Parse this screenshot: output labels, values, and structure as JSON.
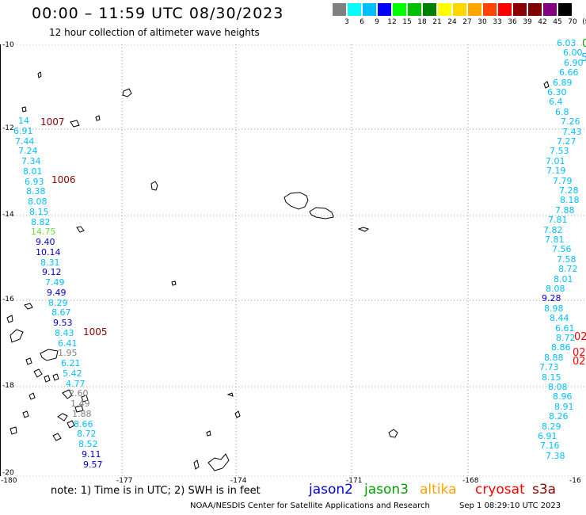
{
  "header": {
    "title": "00:00 – 11:59 UTC 08/30/2023",
    "subtitle": "12 hour collection of altimeter wave heights"
  },
  "color_scale": {
    "labels": [
      "3",
      "6",
      "9",
      "12",
      "15",
      "18",
      "21",
      "24",
      "27",
      "30",
      "33",
      "36",
      "39",
      "42",
      "45",
      "70",
      "(ft)"
    ],
    "colors": [
      "#808080",
      "#00ffff",
      "#00bfff",
      "#0000ff",
      "#00ff00",
      "#00c000",
      "#008000",
      "#ffff00",
      "#ffd700",
      "#ffa500",
      "#ff4500",
      "#ff0000",
      "#8b0000",
      "#800000",
      "#800080",
      "#000000"
    ]
  },
  "axes": {
    "lat_labels": [
      "-10",
      "-12",
      "-14",
      "-16",
      "-18",
      "-20"
    ],
    "lon_labels": [
      "-180",
      "-177",
      "-174",
      "-171",
      "-168",
      "-16"
    ]
  },
  "pressure_labels": [
    {
      "text": "1007"
    },
    {
      "text": "1006"
    },
    {
      "text": "1005"
    }
  ],
  "left_track": [
    {
      "v": "14",
      "c": "#00bfff"
    },
    {
      "v": "6.91",
      "c": "#00bfff"
    },
    {
      "v": "7.44",
      "c": "#00bfff"
    },
    {
      "v": "7.24",
      "c": "#00bfff"
    },
    {
      "v": "7.34",
      "c": "#00bfff"
    },
    {
      "v": "8.01",
      "c": "#00bfff"
    },
    {
      "v": "6.93",
      "c": "#00bfff"
    },
    {
      "v": "8.38",
      "c": "#00bfff"
    },
    {
      "v": "8.08",
      "c": "#00bfff"
    },
    {
      "v": "8.15",
      "c": "#00bfff"
    },
    {
      "v": "8.82",
      "c": "#00bfff"
    },
    {
      "v": "14.75",
      "c": "#66dd44"
    },
    {
      "v": "9.40",
      "c": "#0000cc"
    },
    {
      "v": "10.14",
      "c": "#0000cc"
    },
    {
      "v": "8.31",
      "c": "#00bfff"
    },
    {
      "v": "9.12",
      "c": "#0000cc"
    },
    {
      "v": "7.49",
      "c": "#00bfff"
    },
    {
      "v": "9.49",
      "c": "#0000cc"
    },
    {
      "v": "8.29",
      "c": "#00bfff"
    },
    {
      "v": "8.67",
      "c": "#00bfff"
    },
    {
      "v": "9.53",
      "c": "#0000cc"
    },
    {
      "v": "8.43",
      "c": "#00bfff"
    },
    {
      "v": "6.41",
      "c": "#00bfff"
    },
    {
      "v": "1.95",
      "c": "#808080"
    },
    {
      "v": "6.21",
      "c": "#00bfff"
    },
    {
      "v": "5.42",
      "c": "#00bfff"
    },
    {
      "v": "4.77",
      "c": "#00bfff"
    },
    {
      "v": "2.60",
      "c": "#808080"
    },
    {
      "v": "1.49",
      "c": "#808080"
    },
    {
      "v": "1.88",
      "c": "#808080"
    },
    {
      "v": "8.66",
      "c": "#00bfff"
    },
    {
      "v": "8.72",
      "c": "#00bfff"
    },
    {
      "v": "8.52",
      "c": "#00bfff"
    },
    {
      "v": "9.11",
      "c": "#0000cc"
    },
    {
      "v": "9.57",
      "c": "#0000cc"
    }
  ],
  "right_track": [
    {
      "v": "6.03",
      "c": "#00bfff"
    },
    {
      "v": "6.00",
      "c": "#00bfff"
    },
    {
      "v": "6.90",
      "c": "#00bfff"
    },
    {
      "v": "6.66",
      "c": "#00bfff"
    },
    {
      "v": "6.89",
      "c": "#00bfff"
    },
    {
      "v": "6.30",
      "c": "#00bfff"
    },
    {
      "v": "6.4",
      "c": "#00bfff"
    },
    {
      "v": "6.8",
      "c": "#00bfff"
    },
    {
      "v": "7.26",
      "c": "#00bfff"
    },
    {
      "v": "7.43",
      "c": "#00bfff"
    },
    {
      "v": "7.27",
      "c": "#00bfff"
    },
    {
      "v": "7.53",
      "c": "#00bfff"
    },
    {
      "v": "7.01",
      "c": "#00bfff"
    },
    {
      "v": "7.19",
      "c": "#00bfff"
    },
    {
      "v": "7.79",
      "c": "#00bfff"
    },
    {
      "v": "7.28",
      "c": "#00bfff"
    },
    {
      "v": "8.18",
      "c": "#00bfff"
    },
    {
      "v": "7.88",
      "c": "#00bfff"
    },
    {
      "v": "7.81",
      "c": "#00bfff"
    },
    {
      "v": "7.82",
      "c": "#00bfff"
    },
    {
      "v": "7.81",
      "c": "#00bfff"
    },
    {
      "v": "7.56",
      "c": "#00bfff"
    },
    {
      "v": "7.58",
      "c": "#00bfff"
    },
    {
      "v": "8.72",
      "c": "#00bfff"
    },
    {
      "v": "8.01",
      "c": "#00bfff"
    },
    {
      "v": "8.08",
      "c": "#00bfff"
    },
    {
      "v": "9.28",
      "c": "#0000cc"
    },
    {
      "v": "8.98",
      "c": "#00bfff"
    },
    {
      "v": "8.44",
      "c": "#00bfff"
    },
    {
      "v": "6.61",
      "c": "#00bfff"
    },
    {
      "v": "8.72",
      "c": "#00bfff"
    },
    {
      "v": "8.86",
      "c": "#00bfff"
    },
    {
      "v": "8.88",
      "c": "#00bfff"
    },
    {
      "v": "7.73",
      "c": "#00bfff"
    },
    {
      "v": "8.15",
      "c": "#00bfff"
    },
    {
      "v": "8.08",
      "c": "#00bfff"
    },
    {
      "v": "8.96",
      "c": "#00bfff"
    },
    {
      "v": "8.91",
      "c": "#00bfff"
    },
    {
      "v": "8.26",
      "c": "#00bfff"
    },
    {
      "v": "8.29",
      "c": "#00bfff"
    },
    {
      "v": "6.91",
      "c": "#00bfff"
    },
    {
      "v": "7.16",
      "c": "#00bfff"
    },
    {
      "v": "7.38",
      "c": "#00bfff"
    }
  ],
  "edge_labels": [
    {
      "v": "0",
      "c": "#00a000"
    },
    {
      "v": "5",
      "c": "#00bfff"
    },
    {
      "v": "02",
      "c": "#ff0000"
    },
    {
      "v": "02",
      "c": "#ff0000"
    },
    {
      "v": "02",
      "c": "#ff0000"
    }
  ],
  "footer": {
    "note": "note: 1) Time is in UTC; 2) SWH is in feet",
    "missions": [
      {
        "name": "jason2",
        "color": "#0000dd"
      },
      {
        "name": "jason3",
        "color": "#00a000"
      },
      {
        "name": "altika",
        "color": "#ffa500"
      },
      {
        "name": "cryosat",
        "color": "#ff0000"
      },
      {
        "name": "s3a",
        "color": "#8b0000"
      }
    ],
    "credit": "NOAA/NESDIS Center for Satellite Applications and Research",
    "generated": "Sep  1 08:29:10 UTC 2023"
  }
}
